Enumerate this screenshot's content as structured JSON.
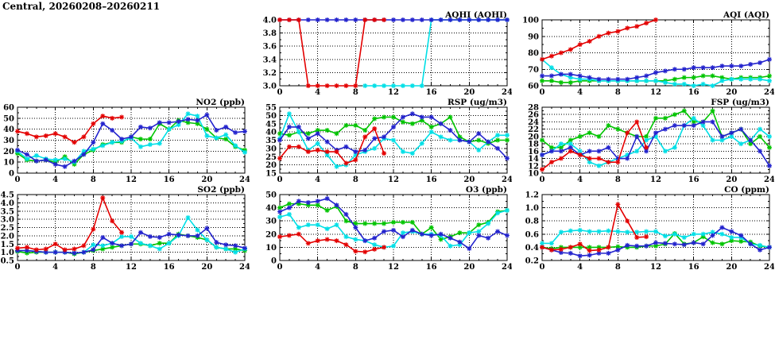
{
  "page_title": "Central, 20260208–20260211",
  "colors": {
    "red": "#e30000",
    "blue": "#2323cd",
    "green": "#00c400",
    "cyan": "#00dfe6",
    "frame": "#000000",
    "grid": "#000000"
  },
  "x_axis": {
    "label_ticks": [
      0,
      4,
      8,
      12,
      16,
      20,
      24
    ],
    "minor_every": 1,
    "xlim": [
      0,
      24
    ]
  },
  "chart_data": [
    {
      "id": "aqhi",
      "type": "line",
      "title": "AQHI (AQHI)",
      "row": 0,
      "col": 1,
      "ylim": [
        3.0,
        4.0
      ],
      "yticks": [
        3.0,
        3.2,
        3.4,
        3.6,
        3.8,
        4.0
      ],
      "xlim": [
        0,
        24
      ],
      "xticks": [
        0,
        4,
        8,
        12,
        16,
        20,
        24
      ],
      "grid": true,
      "legend": "none",
      "series": [
        {
          "name": "series-cyan",
          "color": "cyan",
          "start": 9,
          "values": [
            3,
            3,
            3,
            3,
            3,
            3,
            3,
            4,
            4,
            4,
            4,
            4,
            4,
            4,
            4,
            4
          ]
        },
        {
          "name": "series-blue",
          "color": "blue",
          "start": 0,
          "values": [
            4,
            4,
            4,
            4,
            4,
            4,
            4,
            4,
            4,
            4,
            4,
            4,
            4,
            4,
            4,
            4,
            4,
            4,
            4,
            4,
            4,
            4,
            4,
            4,
            4
          ]
        },
        {
          "name": "series-red",
          "color": "red",
          "start": 0,
          "values": [
            4,
            4,
            4,
            3,
            3,
            3,
            3,
            3,
            3,
            4,
            4,
            4
          ]
        }
      ]
    },
    {
      "id": "aqi",
      "type": "line",
      "title": "AQI (AQI)",
      "row": 0,
      "col": 2,
      "ylim": [
        60,
        100
      ],
      "yticks": [
        60,
        70,
        80,
        90,
        100
      ],
      "xlim": [
        0,
        24
      ],
      "xticks": [
        0,
        4,
        8,
        12,
        16,
        20,
        24
      ],
      "grid": true,
      "legend": "none",
      "series": [
        {
          "name": "series-green",
          "color": "green",
          "start": 0,
          "values": [
            63,
            63,
            62,
            62,
            63,
            63,
            63,
            63,
            63,
            63,
            63,
            63,
            63,
            63,
            64,
            65,
            65,
            66,
            66,
            65,
            64,
            65,
            65,
            65,
            66
          ]
        },
        {
          "name": "series-cyan",
          "color": "cyan",
          "start": 0,
          "values": [
            76,
            71,
            67,
            65,
            64,
            64,
            63,
            63,
            63,
            63,
            63,
            63,
            63,
            62,
            61,
            61,
            60,
            61,
            60,
            63,
            64,
            64,
            64,
            64,
            63
          ]
        },
        {
          "name": "series-blue",
          "color": "blue",
          "start": 0,
          "values": [
            66,
            66,
            67,
            67,
            66,
            65,
            64,
            64,
            64,
            64,
            65,
            66,
            68,
            69,
            70,
            70,
            71,
            71,
            71,
            72,
            72,
            72,
            73,
            74,
            76
          ]
        },
        {
          "name": "series-red",
          "color": "red",
          "start": 0,
          "values": [
            76,
            78,
            80,
            82,
            85,
            87,
            90,
            92,
            93,
            95,
            96,
            98,
            100
          ]
        }
      ]
    },
    {
      "id": "no2",
      "type": "line",
      "title": "NO2 (ppb)",
      "row": 1,
      "col": 0,
      "ylim": [
        0,
        60
      ],
      "yticks": [
        0,
        10,
        20,
        30,
        40,
        50,
        60
      ],
      "xlim": [
        0,
        24
      ],
      "xticks": [
        0,
        4,
        8,
        12,
        16,
        20,
        24
      ],
      "grid": true,
      "legend": "none",
      "series": [
        {
          "name": "series-green",
          "color": "green",
          "start": 0,
          "values": [
            18,
            12,
            11,
            12,
            10,
            15,
            8,
            17,
            21,
            26,
            28,
            28,
            33,
            31,
            31,
            45,
            40,
            48,
            46,
            45,
            40,
            32,
            31,
            24,
            21
          ]
        },
        {
          "name": "series-cyan",
          "color": "cyan",
          "start": 0,
          "values": [
            20,
            13,
            16,
            13,
            12,
            13,
            10,
            20,
            22,
            25,
            28,
            29,
            32,
            24,
            26,
            27,
            40,
            44,
            54,
            52,
            34,
            32,
            35,
            25,
            19
          ]
        },
        {
          "name": "series-blue",
          "color": "blue",
          "start": 0,
          "values": [
            21,
            17,
            11,
            12,
            8,
            6,
            11,
            17,
            28,
            45,
            39,
            31,
            33,
            42,
            41,
            46,
            46,
            47,
            49,
            48,
            53,
            39,
            42,
            37,
            38
          ]
        },
        {
          "name": "series-red",
          "color": "red",
          "start": 0,
          "values": [
            38,
            36,
            33,
            34,
            36,
            33,
            28,
            33,
            45,
            52,
            50,
            51
          ]
        }
      ]
    },
    {
      "id": "rsp",
      "type": "line",
      "title": "RSP (ug/m3)",
      "row": 1,
      "col": 1,
      "ylim": [
        15,
        55
      ],
      "yticks": [
        15,
        20,
        25,
        30,
        35,
        40,
        45,
        50,
        55
      ],
      "xlim": [
        0,
        24
      ],
      "xticks": [
        0,
        4,
        8,
        12,
        16,
        20,
        24
      ],
      "grid": true,
      "legend": "none",
      "series": [
        {
          "name": "series-green",
          "color": "green",
          "start": 0,
          "values": [
            39,
            38,
            40,
            39,
            41,
            41,
            39,
            44,
            44,
            41,
            48,
            49,
            49,
            46,
            45,
            47,
            43,
            45,
            49,
            37,
            34,
            35,
            33,
            35,
            35
          ]
        },
        {
          "name": "series-cyan",
          "color": "cyan",
          "start": 0,
          "values": [
            36,
            51,
            40,
            29,
            33,
            26,
            19,
            20,
            26,
            28,
            30,
            36,
            35,
            28,
            27,
            33,
            40,
            37,
            35,
            35,
            34,
            29,
            34,
            38,
            38
          ]
        },
        {
          "name": "series-blue",
          "color": "blue",
          "start": 0,
          "values": [
            35,
            43,
            43,
            36,
            39,
            34,
            29,
            31,
            28,
            29,
            36,
            37,
            43,
            49,
            51,
            49,
            49,
            45,
            41,
            35,
            34,
            39,
            34,
            30,
            24
          ]
        },
        {
          "name": "series-red",
          "color": "red",
          "start": 0,
          "values": [
            24,
            31,
            31,
            28,
            29,
            28,
            28,
            21,
            23,
            37,
            42,
            27
          ]
        }
      ]
    },
    {
      "id": "fsp",
      "type": "line",
      "title": "FSP (ug/m3)",
      "row": 1,
      "col": 2,
      "ylim": [
        10,
        28
      ],
      "yticks": [
        10,
        12,
        14,
        16,
        18,
        20,
        22,
        24,
        26,
        28
      ],
      "xlim": [
        0,
        24
      ],
      "xticks": [
        0,
        4,
        8,
        12,
        16,
        20,
        24
      ],
      "grid": true,
      "legend": "none",
      "series": [
        {
          "name": "series-green",
          "color": "green",
          "start": 0,
          "values": [
            19,
            17,
            17,
            19,
            20,
            21,
            20,
            23,
            22,
            21,
            20,
            20,
            25,
            25,
            26,
            27,
            24,
            24,
            27,
            20,
            21,
            22,
            18,
            20,
            17
          ]
        },
        {
          "name": "series-cyan",
          "color": "cyan",
          "start": 0,
          "values": [
            15,
            16,
            18,
            18,
            16,
            13,
            12,
            13,
            14,
            15,
            16,
            19,
            20,
            16,
            17,
            23,
            25,
            23,
            19,
            19,
            20,
            18,
            19,
            22,
            20
          ]
        },
        {
          "name": "series-blue",
          "color": "blue",
          "start": 0,
          "values": [
            15,
            16,
            16,
            17,
            15,
            16,
            16,
            17,
            14,
            14,
            20,
            16,
            21,
            22,
            23,
            23,
            23,
            24,
            24,
            20,
            21,
            22,
            19,
            16,
            12
          ]
        },
        {
          "name": "series-red",
          "color": "red",
          "start": 0,
          "values": [
            11,
            13,
            14,
            16,
            15,
            14,
            14,
            13,
            13,
            21,
            24,
            17
          ]
        }
      ]
    },
    {
      "id": "so2",
      "type": "line",
      "title": "SO2 (ppb)",
      "row": 2,
      "col": 0,
      "ylim": [
        0.5,
        4.5
      ],
      "yticks": [
        0.5,
        1.0,
        1.5,
        2.0,
        2.5,
        3.0,
        3.5,
        4.0,
        4.5
      ],
      "xlim": [
        0,
        24
      ],
      "xticks": [
        0,
        4,
        8,
        12,
        16,
        20,
        24
      ],
      "grid": true,
      "legend": "none",
      "series": [
        {
          "name": "series-green",
          "color": "green",
          "start": 0,
          "values": [
            1.05,
            0.95,
            1.0,
            1.0,
            1.0,
            1.0,
            0.9,
            1.0,
            1.1,
            1.2,
            1.3,
            1.4,
            1.5,
            1.5,
            1.4,
            1.55,
            1.55,
            2.1,
            2.0,
            1.9,
            1.75,
            1.3,
            1.2,
            1.2,
            1.1
          ]
        },
        {
          "name": "series-cyan",
          "color": "cyan",
          "start": 0,
          "values": [
            1.1,
            1.1,
            1.05,
            1.0,
            1.0,
            1.0,
            0.95,
            1.0,
            1.45,
            1.4,
            1.55,
            1.95,
            1.95,
            1.55,
            1.4,
            1.2,
            1.55,
            2.0,
            3.1,
            2.35,
            1.75,
            1.3,
            1.2,
            1.0,
            1.2
          ]
        },
        {
          "name": "series-blue",
          "color": "blue",
          "start": 0,
          "values": [
            1.1,
            1.1,
            1.05,
            1.0,
            1.0,
            1.0,
            0.95,
            1.0,
            1.15,
            1.9,
            1.55,
            1.4,
            1.5,
            2.2,
            1.95,
            1.9,
            2.1,
            2.05,
            2.0,
            2.0,
            2.45,
            1.6,
            1.45,
            1.4,
            1.25
          ]
        },
        {
          "name": "series-red",
          "color": "red",
          "start": 0,
          "values": [
            1.25,
            1.3,
            1.15,
            1.2,
            1.5,
            1.15,
            1.2,
            1.4,
            2.4,
            4.3,
            2.9,
            2.2
          ]
        }
      ]
    },
    {
      "id": "o3",
      "type": "line",
      "title": "O3 (ppb)",
      "row": 2,
      "col": 1,
      "ylim": [
        0,
        50
      ],
      "yticks": [
        0,
        10,
        20,
        30,
        40,
        50
      ],
      "xlim": [
        0,
        24
      ],
      "xticks": [
        0,
        4,
        8,
        12,
        16,
        20,
        24
      ],
      "grid": true,
      "legend": "none",
      "series": [
        {
          "name": "series-green",
          "color": "green",
          "start": 0,
          "values": [
            40,
            43,
            43,
            42,
            42,
            38,
            41,
            30,
            28,
            28,
            28,
            28,
            29,
            29,
            29,
            20,
            25,
            16,
            18,
            21,
            21,
            27,
            29,
            37,
            38
          ]
        },
        {
          "name": "series-cyan",
          "color": "cyan",
          "start": 0,
          "values": [
            33,
            35,
            25,
            27,
            27,
            24,
            27,
            18,
            16,
            15,
            12,
            10,
            11,
            21,
            22,
            20,
            20,
            19,
            11,
            12,
            21,
            22,
            28,
            36,
            38
          ]
        },
        {
          "name": "series-blue",
          "color": "blue",
          "start": 0,
          "values": [
            37,
            40,
            45,
            44,
            45,
            47,
            42,
            35,
            25,
            15,
            17,
            22,
            23,
            18,
            23,
            20,
            19,
            20,
            17,
            14,
            9,
            19,
            17,
            22,
            19
          ]
        },
        {
          "name": "series-red",
          "color": "red",
          "start": 0,
          "values": [
            18,
            19,
            20,
            13,
            15,
            16,
            15,
            12,
            7,
            6.5,
            8.5,
            10
          ]
        }
      ]
    },
    {
      "id": "co",
      "type": "line",
      "title": "CO (ppm)",
      "row": 2,
      "col": 2,
      "ylim": [
        0.2,
        1.2
      ],
      "yticks": [
        0.2,
        0.4,
        0.6,
        0.8,
        1.0,
        1.2
      ],
      "xlim": [
        0,
        24
      ],
      "xticks": [
        0,
        4,
        8,
        12,
        16,
        20,
        24
      ],
      "grid": true,
      "legend": "none",
      "series": [
        {
          "name": "series-green",
          "color": "green",
          "start": 0,
          "values": [
            0.4,
            0.38,
            0.4,
            0.4,
            0.4,
            0.4,
            0.4,
            0.4,
            0.41,
            0.4,
            0.4,
            0.42,
            0.42,
            0.45,
            0.61,
            0.45,
            0.47,
            0.56,
            0.47,
            0.45,
            0.5,
            0.49,
            0.48,
            0.42,
            0.4
          ]
        },
        {
          "name": "series-cyan",
          "color": "cyan",
          "start": 0,
          "values": [
            0.46,
            0.46,
            0.63,
            0.65,
            0.66,
            0.64,
            0.64,
            0.65,
            0.64,
            0.63,
            0.63,
            0.64,
            0.64,
            0.57,
            0.6,
            0.55,
            0.6,
            0.6,
            0.63,
            0.6,
            0.55,
            0.55,
            0.45,
            0.43,
            0.4
          ]
        },
        {
          "name": "series-blue",
          "color": "blue",
          "start": 0,
          "values": [
            0.4,
            0.36,
            0.32,
            0.31,
            0.27,
            0.28,
            0.31,
            0.31,
            0.36,
            0.43,
            0.42,
            0.42,
            0.47,
            0.46,
            0.45,
            0.44,
            0.47,
            0.45,
            0.58,
            0.7,
            0.64,
            0.58,
            0.45,
            0.36,
            0.4
          ]
        },
        {
          "name": "series-red",
          "color": "red",
          "start": 0,
          "values": [
            0.4,
            0.36,
            0.37,
            0.4,
            0.45,
            0.35,
            0.36,
            0.4,
            1.05,
            0.8,
            0.55,
            0.56
          ]
        }
      ]
    }
  ]
}
